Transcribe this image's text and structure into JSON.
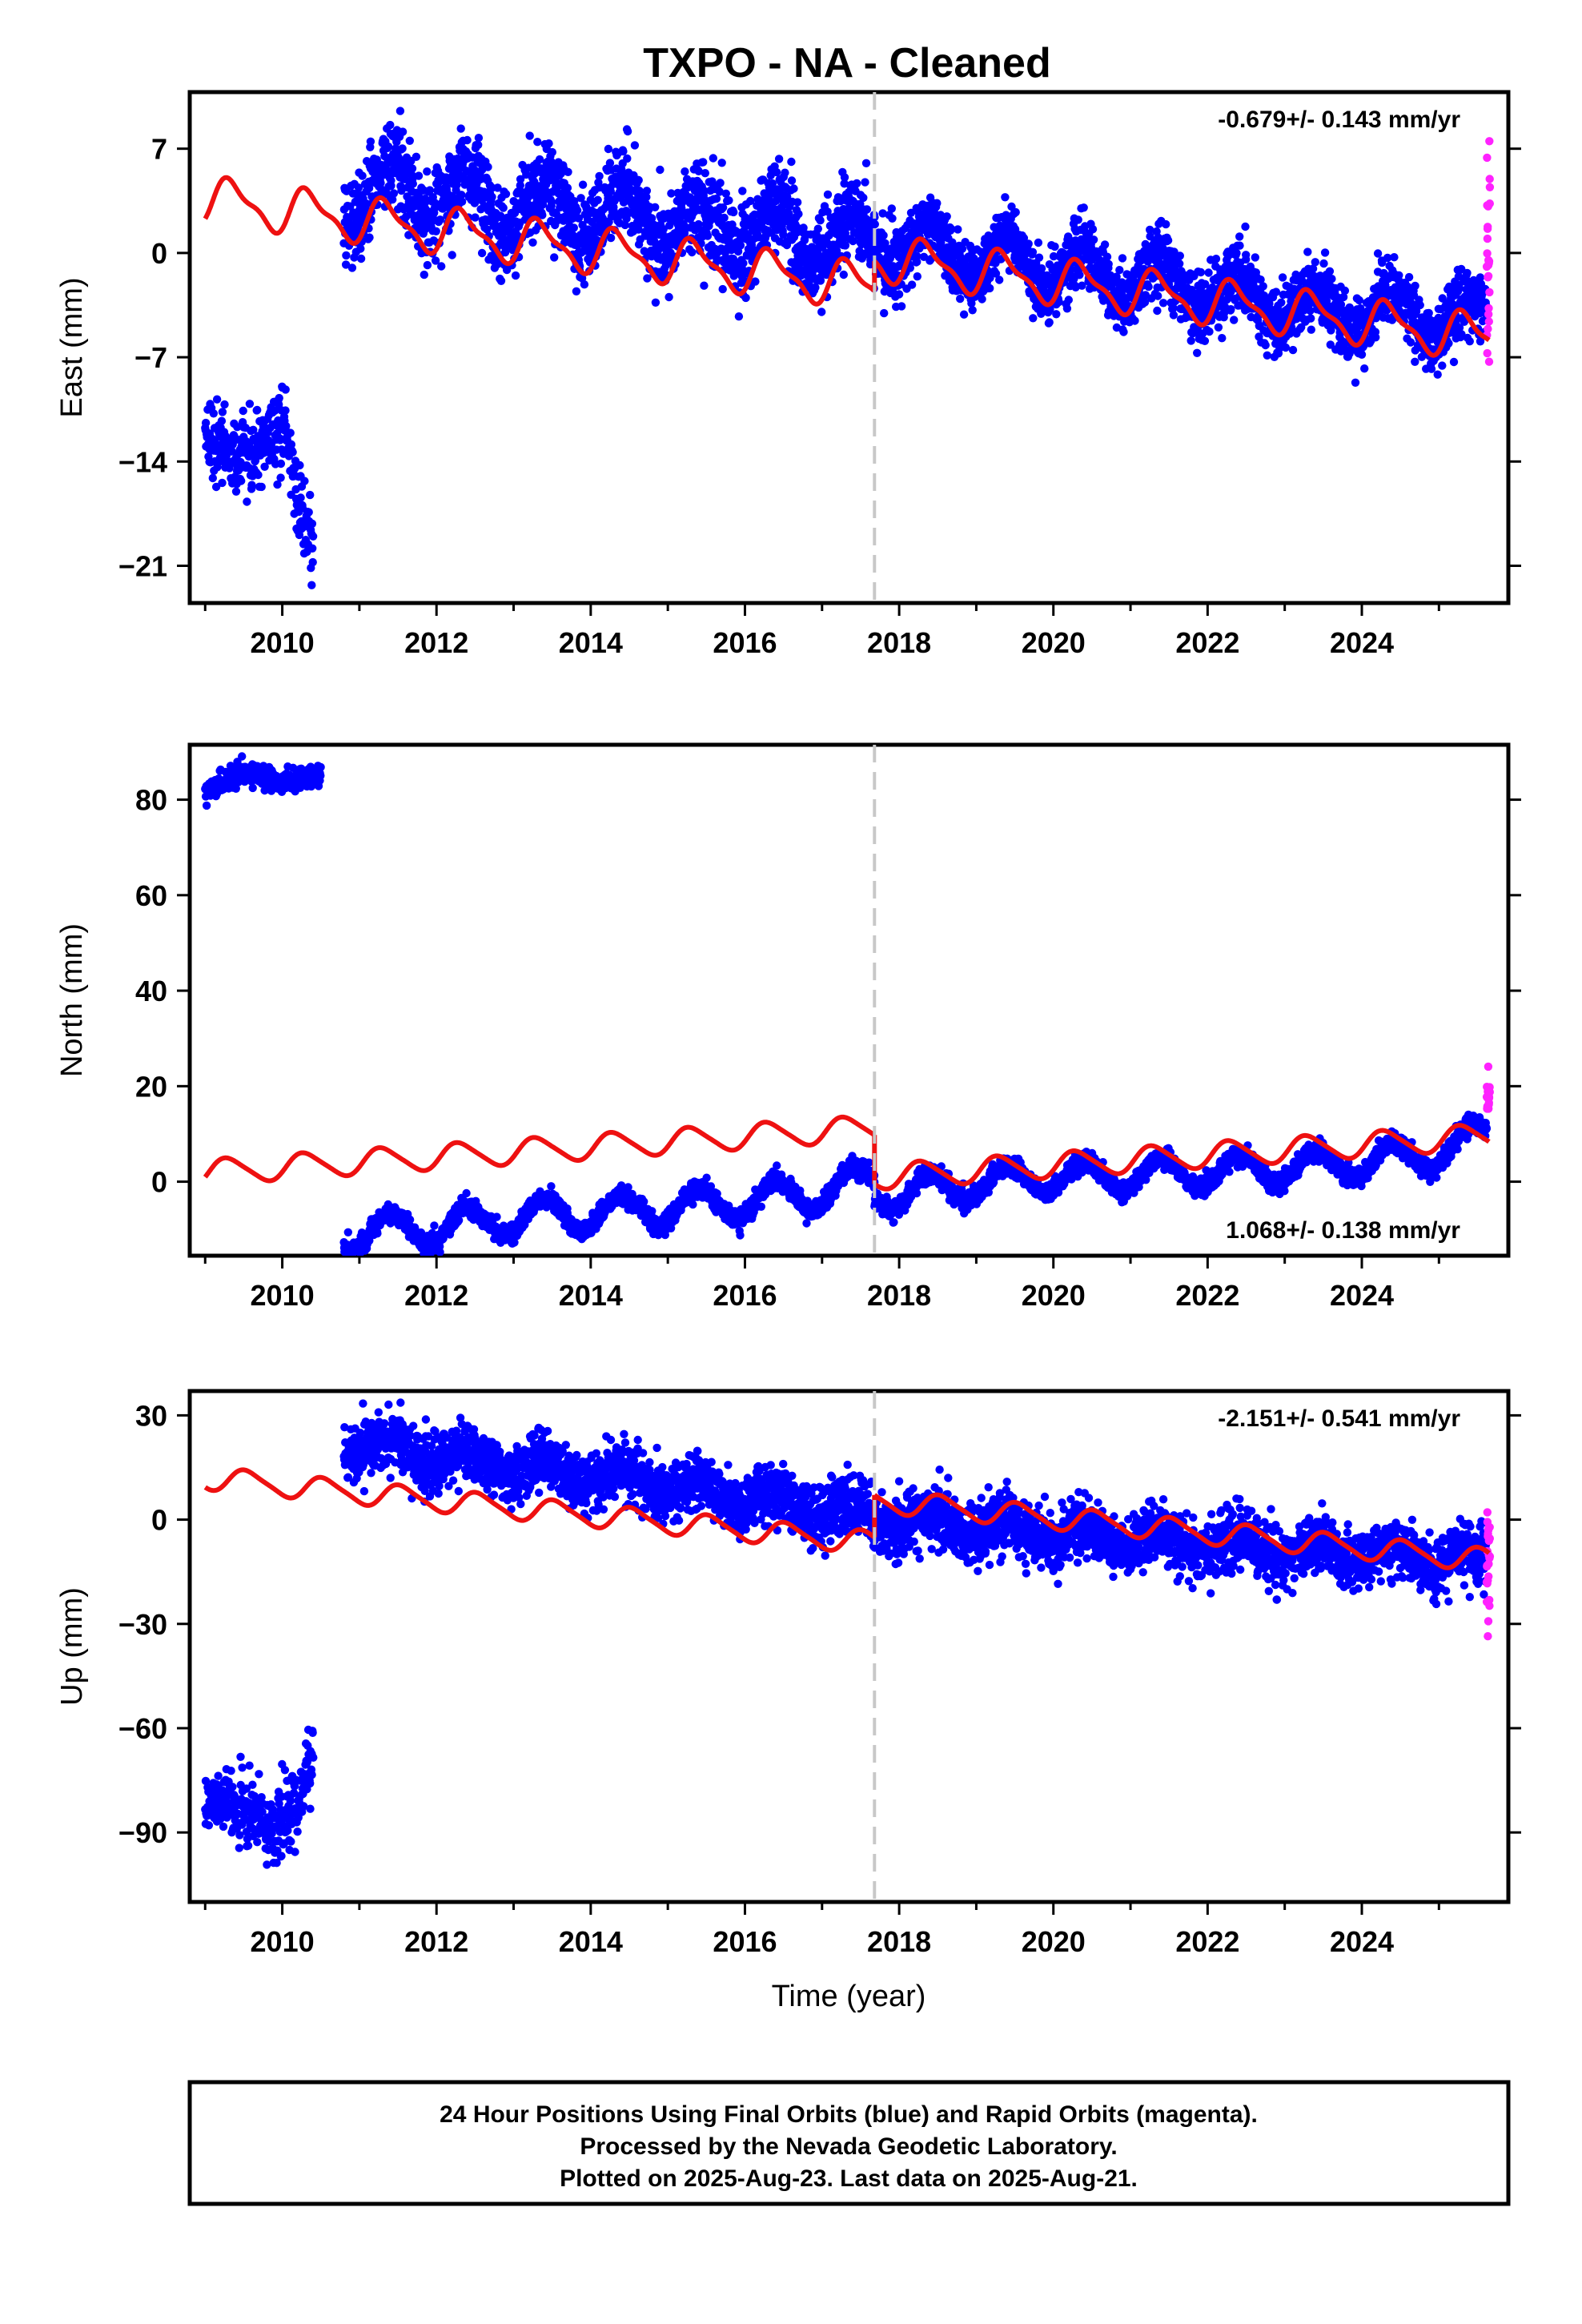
{
  "title": "TXPO  - NA - Cleaned",
  "footer": {
    "line1": "24 Hour Positions Using Final Orbits (blue) and Rapid Orbits (magenta).",
    "line2": "Processed by the Nevada Geodetic Laboratory.",
    "line3": "Plotted on 2025-Aug-23. Last data on 2025-Aug-21."
  },
  "colors": {
    "final_orbits": "#0000ff",
    "rapid_orbits": "#ff22ff",
    "model": "#ee1111",
    "equipment_change": "#c8c8c8"
  },
  "chart_data": [
    {
      "type": "scatter",
      "component": "east",
      "xlabel": "",
      "ylabel": "East (mm)",
      "xlim": [
        2008.8,
        2025.9
      ],
      "ylim": [
        -23.5,
        10.8
      ],
      "xticks": [
        2010,
        2012,
        2014,
        2016,
        2018,
        2020,
        2022,
        2024
      ],
      "yticks": [
        7,
        0,
        -7,
        -14,
        -21
      ],
      "ytick_labels": [
        "7",
        "0",
        "−7",
        "−14",
        "−21"
      ],
      "rate": "-0.679+/- 0.143 mm/yr",
      "rate_position": "top-right",
      "equipment_change_year": 2017.68,
      "series": [
        {
          "marker": "final",
          "segments": [
            {
              "x0": 2009.0,
              "x1": 2010.4,
              "anchors": [
                [
                  2009.0,
                  -11.5
                ],
                [
                  2009.3,
                  -13.5
                ],
                [
                  2009.5,
                  -14.0
                ],
                [
                  2009.7,
                  -13.0
                ],
                [
                  2009.9,
                  -12.0
                ],
                [
                  2010.1,
                  -13.0
                ],
                [
                  2010.2,
                  -17.0
                ],
                [
                  2010.4,
                  -19.5
                ]
              ],
              "amp": 0,
              "noise": 1.3,
              "count": 300
            },
            {
              "x0": 2010.8,
              "x1": 2017.68,
              "anchors": [
                [
                  2010.8,
                  3.5
                ],
                [
                  2011.5,
                  4.5
                ],
                [
                  2012.5,
                  3.5
                ],
                [
                  2013.5,
                  3.0
                ],
                [
                  2014.5,
                  2.5
                ],
                [
                  2015.5,
                  1.8
                ],
                [
                  2016.5,
                  1.2
                ],
                [
                  2017.68,
                  0.8
                ]
              ],
              "amp": 1.8,
              "noise": 1.5,
              "count": 1900
            },
            {
              "x0": 2017.68,
              "x1": 2025.62,
              "anchors": [
                [
                  2017.68,
                  1.0
                ],
                [
                  2019.0,
                  -0.5
                ],
                [
                  2020.0,
                  -1.0
                ],
                [
                  2021.0,
                  -1.8
                ],
                [
                  2022.0,
                  -2.5
                ],
                [
                  2023.0,
                  -3.3
                ],
                [
                  2024.0,
                  -4.0
                ],
                [
                  2025.62,
                  -4.5
                ]
              ],
              "amp": 1.6,
              "noise": 1.1,
              "count": 2300
            }
          ]
        },
        {
          "marker": "rapid",
          "segments": [
            {
              "x0": 2025.62,
              "x1": 2025.66,
              "anchors": [
                [
                  2025.62,
                  -1.0
                ],
                [
                  2025.66,
                  0.5
                ]
              ],
              "amp": 0,
              "noise": 4.0,
              "count": 26
            }
          ]
        }
      ],
      "model": {
        "segments": [
          {
            "x0": 2009.0,
            "x1": 2017.68,
            "v0": 3.6,
            "rate": -0.679,
            "amp": 1.4,
            "phase": 0.1,
            "amp2": 0.5
          },
          {
            "x0": 2017.68,
            "x1": 2025.65,
            "v0": -0.3,
            "rate": -0.679,
            "amp": 1.4,
            "phase": 0.1,
            "amp2": 0.5
          }
        ]
      }
    },
    {
      "type": "scatter",
      "component": "north",
      "xlabel": "",
      "ylabel": "North (mm)",
      "xlim": [
        2008.8,
        2025.9
      ],
      "ylim": [
        -15.5,
        91.5
      ],
      "xticks": [
        2010,
        2012,
        2014,
        2016,
        2018,
        2020,
        2022,
        2024
      ],
      "yticks": [
        80,
        60,
        40,
        20,
        0
      ],
      "ytick_labels": [
        "80",
        "60",
        "40",
        "20",
        "0"
      ],
      "rate": "1.068+/- 0.138 mm/yr",
      "rate_position": "bottom-right",
      "equipment_change_year": 2017.68,
      "series": [
        {
          "marker": "final",
          "segments": [
            {
              "x0": 2009.0,
              "x1": 2010.5,
              "anchors": [
                [
                  2009.0,
                  81.5
                ],
                [
                  2009.5,
                  86.0
                ],
                [
                  2010.0,
                  83.5
                ],
                [
                  2010.5,
                  85.0
                ]
              ],
              "amp": 0,
              "noise": 1.1,
              "count": 300
            },
            {
              "x0": 2010.8,
              "x1": 2017.68,
              "anchors": [
                [
                  2010.8,
                  -11.0
                ],
                [
                  2012.0,
                  -9.5
                ],
                [
                  2013.0,
                  -7.5
                ],
                [
                  2014.0,
                  -6.5
                ],
                [
                  2015.0,
                  -5.5
                ],
                [
                  2016.0,
                  -4.0
                ],
                [
                  2017.0,
                  -2.0
                ],
                [
                  2017.68,
                  0.5
                ]
              ],
              "amp": 3.5,
              "noise": 1.0,
              "count": 1900
            },
            {
              "x0": 2017.68,
              "x1": 2025.62,
              "anchors": [
                [
                  2017.68,
                  -3.0
                ],
                [
                  2019.0,
                  -0.5
                ],
                [
                  2020.0,
                  1.0
                ],
                [
                  2021.0,
                  1.5
                ],
                [
                  2022.0,
                  2.0
                ],
                [
                  2023.0,
                  3.0
                ],
                [
                  2024.0,
                  4.0
                ],
                [
                  2025.0,
                  6.0
                ],
                [
                  2025.62,
                  10.5
                ]
              ],
              "amp": 3.2,
              "noise": 1.0,
              "count": 2300
            }
          ]
        },
        {
          "marker": "rapid",
          "segments": [
            {
              "x0": 2025.62,
              "x1": 2025.66,
              "anchors": [
                [
                  2025.62,
                  17.0
                ],
                [
                  2025.66,
                  18.5
                ]
              ],
              "amp": 0,
              "noise": 1.5,
              "count": 20
            }
          ]
        }
      ],
      "model": {
        "segments": [
          {
            "x0": 2009.0,
            "x1": 2017.68,
            "v0": 2.0,
            "rate": 1.068,
            "amp": 2.6,
            "phase": 0.05,
            "amp2": 0.4
          },
          {
            "x0": 2017.68,
            "x1": 2025.65,
            "v0": 1.0,
            "rate": 1.068,
            "amp": 2.6,
            "phase": 0.05,
            "amp2": 0.4
          }
        ]
      }
    },
    {
      "type": "scatter",
      "component": "up",
      "xlabel": "Time (year)",
      "ylabel": "Up (mm)",
      "xlim": [
        2008.8,
        2025.9
      ],
      "ylim": [
        -110,
        37
      ],
      "xticks": [
        2010,
        2012,
        2014,
        2016,
        2018,
        2020,
        2022,
        2024
      ],
      "yticks": [
        30,
        0,
        -30,
        -60,
        -90
      ],
      "ytick_labels": [
        "30",
        "0",
        "−30",
        "−60",
        "−90"
      ],
      "rate": "-2.151+/- 0.541 mm/yr",
      "rate_position": "top-right",
      "equipment_change_year": 2017.68,
      "series": [
        {
          "marker": "final",
          "segments": [
            {
              "x0": 2009.0,
              "x1": 2010.4,
              "anchors": [
                [
                  2009.0,
                  -80.0
                ],
                [
                  2009.5,
                  -82.0
                ],
                [
                  2009.9,
                  -88.0
                ],
                [
                  2010.2,
                  -82.0
                ],
                [
                  2010.4,
                  -70.0
                ]
              ],
              "amp": 0,
              "noise": 5.0,
              "count": 300
            },
            {
              "x0": 2010.8,
              "x1": 2017.68,
              "anchors": [
                [
                  2010.8,
                  22.0
                ],
                [
                  2012.0,
                  19.0
                ],
                [
                  2013.0,
                  15.0
                ],
                [
                  2014.0,
                  13.0
                ],
                [
                  2015.0,
                  10.0
                ],
                [
                  2016.0,
                  6.0
                ],
                [
                  2017.0,
                  3.0
                ],
                [
                  2017.68,
                  1.0
                ]
              ],
              "amp": 3.0,
              "noise": 4.0,
              "count": 1900
            },
            {
              "x0": 2017.68,
              "x1": 2025.62,
              "anchors": [
                [
                  2017.68,
                  0.5
                ],
                [
                  2019.0,
                  -2.0
                ],
                [
                  2020.0,
                  -4.0
                ],
                [
                  2021.0,
                  -6.0
                ],
                [
                  2022.0,
                  -7.0
                ],
                [
                  2023.0,
                  -8.0
                ],
                [
                  2024.0,
                  -9.0
                ],
                [
                  2025.62,
                  -12.0
                ]
              ],
              "amp": 2.5,
              "noise": 4.0,
              "count": 2300
            }
          ]
        },
        {
          "marker": "rapid",
          "segments": [
            {
              "x0": 2025.62,
              "x1": 2025.66,
              "anchors": [
                [
                  2025.62,
                  -12.0
                ],
                [
                  2025.66,
                  -10.0
                ]
              ],
              "amp": 0,
              "noise": 10.0,
              "count": 26
            }
          ]
        }
      ],
      "model": {
        "segments": [
          {
            "x0": 2009.0,
            "x1": 2017.68,
            "v0": 12.0,
            "rate": -2.151,
            "amp": 3.2,
            "phase": 0.3,
            "amp2": 0.6
          },
          {
            "x0": 2017.68,
            "x1": 2025.65,
            "v0": 5.5,
            "rate": -2.151,
            "amp": 3.2,
            "phase": 0.3,
            "amp2": 0.6
          }
        ]
      }
    }
  ]
}
